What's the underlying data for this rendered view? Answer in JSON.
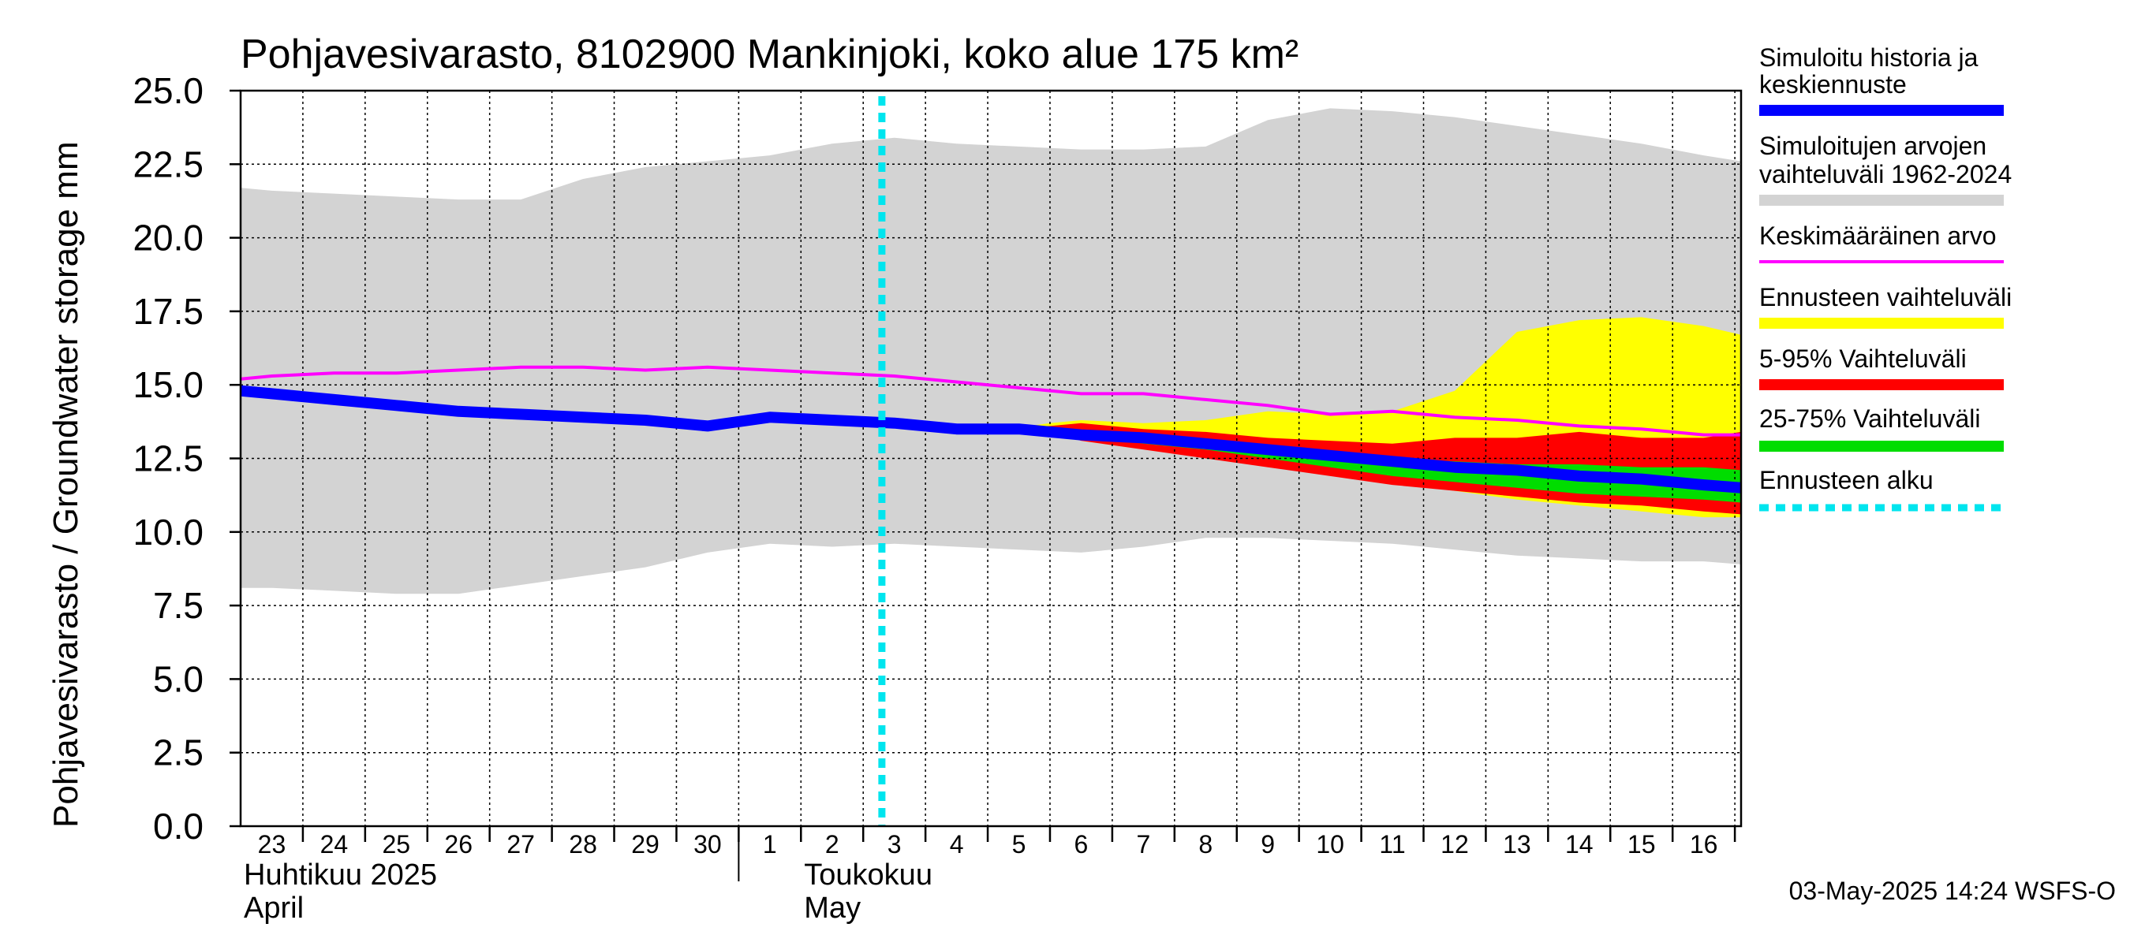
{
  "chart_data": {
    "type": "area",
    "title": "Pohjavesivarasto, 8102900 Mankinjoki, koko alue 175 km²",
    "ylabel": "Pohjavesivarasto / Groundwater storage   mm",
    "ylim": [
      0,
      25
    ],
    "yticks": [
      "0.0",
      "2.5",
      "5.0",
      "7.5",
      "10.0",
      "12.5",
      "15.0",
      "17.5",
      "20.0",
      "22.5",
      "25.0"
    ],
    "ytick_values": [
      0,
      2.5,
      5,
      7.5,
      10,
      12.5,
      15,
      17.5,
      20,
      22.5,
      25
    ],
    "x_day_range": [
      -0.5,
      23.6
    ],
    "day_labels": [
      "23",
      "24",
      "25",
      "26",
      "27",
      "28",
      "29",
      "30",
      "1",
      "2",
      "3",
      "4",
      "5",
      "6",
      "7",
      "8",
      "9",
      "10",
      "11",
      "12",
      "13",
      "14",
      "15",
      "16"
    ],
    "month_labels": [
      {
        "line1": "Huhtikuu  2025",
        "line2": "April",
        "day": 0
      },
      {
        "line1": "Toukokuu",
        "line2": "May",
        "day": 9
      }
    ],
    "month_boundary_day": 7.5,
    "forecast_start_day": 9.8,
    "series": {
      "range_1962_2024": {
        "name": "Simuloitujen arvojen vaihteluväli 1962-2024",
        "color": "#d3d3d3",
        "x": [
          -0.5,
          0,
          1,
          2,
          3,
          4,
          5,
          6,
          7,
          8,
          9,
          10,
          11,
          12,
          13,
          14,
          15,
          16,
          17,
          18,
          19,
          20,
          21,
          22,
          23,
          23.6
        ],
        "upper": [
          21.7,
          21.6,
          21.5,
          21.4,
          21.3,
          21.3,
          22.0,
          22.4,
          22.6,
          22.8,
          23.2,
          23.4,
          23.2,
          23.1,
          23.0,
          23.0,
          23.1,
          24.0,
          24.4,
          24.3,
          24.1,
          23.8,
          23.5,
          23.2,
          22.8,
          22.6
        ],
        "lower": [
          8.1,
          8.1,
          8.0,
          7.9,
          7.9,
          8.2,
          8.5,
          8.8,
          9.3,
          9.6,
          9.5,
          9.6,
          9.5,
          9.4,
          9.3,
          9.5,
          9.8,
          9.8,
          9.7,
          9.6,
          9.4,
          9.2,
          9.1,
          9.0,
          9.0,
          8.9
        ]
      },
      "forecast_range": {
        "name": "Ennusteen vaihteluväli",
        "color": "#ffff00",
        "x": [
          11.8,
          12.5,
          13,
          14,
          15,
          16,
          17,
          18,
          19,
          20,
          21,
          22,
          23,
          23.6
        ],
        "upper": [
          13.5,
          13.7,
          13.8,
          13.7,
          13.8,
          14.1,
          14.0,
          14.1,
          14.8,
          16.8,
          17.2,
          17.3,
          17.0,
          16.7
        ],
        "lower": [
          13.5,
          13.5,
          13.2,
          12.9,
          12.6,
          12.3,
          12.0,
          11.7,
          11.4,
          11.1,
          10.9,
          10.7,
          10.5,
          10.5
        ]
      },
      "p5_95": {
        "name": "5-95% Vaihteluväli",
        "color": "#ff0000",
        "x": [
          11.8,
          12.5,
          13,
          14,
          15,
          16,
          17,
          18,
          19,
          20,
          21,
          22,
          23,
          23.6
        ],
        "upper": [
          13.5,
          13.6,
          13.7,
          13.5,
          13.4,
          13.2,
          13.1,
          13.0,
          13.2,
          13.2,
          13.4,
          13.2,
          13.2,
          13.4
        ],
        "lower": [
          13.5,
          13.4,
          13.1,
          12.8,
          12.5,
          12.2,
          11.9,
          11.6,
          11.4,
          11.2,
          11.0,
          10.9,
          10.7,
          10.6
        ]
      },
      "p25_75": {
        "name": "25-75% Vaihteluväli",
        "color": "#00dd00",
        "x": [
          11.8,
          12.5,
          13,
          14,
          15,
          16,
          17,
          18,
          19,
          20,
          21,
          22,
          23,
          23.6
        ],
        "upper": [
          13.5,
          13.5,
          13.4,
          13.2,
          13.0,
          12.8,
          12.6,
          12.5,
          12.4,
          12.3,
          12.3,
          12.2,
          12.2,
          12.1
        ],
        "lower": [
          13.5,
          13.5,
          13.3,
          13.0,
          12.8,
          12.5,
          12.2,
          11.9,
          11.7,
          11.5,
          11.3,
          11.2,
          11.1,
          11.0
        ]
      },
      "mean": {
        "name": "Keskimääräinen arvo",
        "color": "#ff00ff",
        "x": [
          -0.5,
          0,
          1,
          2,
          3,
          4,
          5,
          6,
          7,
          8,
          9,
          10,
          11,
          12,
          13,
          14,
          15,
          16,
          17,
          18,
          19,
          20,
          21,
          22,
          23,
          23.6
        ],
        "y": [
          15.2,
          15.3,
          15.4,
          15.4,
          15.5,
          15.6,
          15.6,
          15.5,
          15.6,
          15.5,
          15.4,
          15.3,
          15.1,
          14.9,
          14.7,
          14.7,
          14.5,
          14.3,
          14.0,
          14.1,
          13.9,
          13.8,
          13.6,
          13.5,
          13.3,
          13.3
        ]
      },
      "history_forecast": {
        "name": "Simuloitu historia ja keskiennuste",
        "color": "#0000ff",
        "x": [
          -0.5,
          0,
          1,
          2,
          3,
          4,
          5,
          6,
          7,
          8,
          9,
          10,
          11,
          12,
          13,
          14,
          15,
          16,
          17,
          18,
          19,
          20,
          21,
          22,
          23,
          23.6
        ],
        "y": [
          14.8,
          14.7,
          14.5,
          14.3,
          14.1,
          14.0,
          13.9,
          13.8,
          13.6,
          13.9,
          13.8,
          13.7,
          13.5,
          13.5,
          13.3,
          13.2,
          13.0,
          12.8,
          12.6,
          12.4,
          12.2,
          12.1,
          11.9,
          11.8,
          11.6,
          11.5
        ]
      }
    },
    "legend": [
      {
        "key": "history_forecast",
        "line1": "Simuloitu historia ja",
        "line2": "keskiennuste",
        "color": "#0000ff",
        "style": "thick"
      },
      {
        "key": "range_1962_2024",
        "line1": "Simuloitujen arvojen",
        "line2": "vaihteluväli 1962-2024",
        "color": "#d3d3d3",
        "style": "thick"
      },
      {
        "key": "mean",
        "line1": "Keskimääräinen arvo",
        "line2": "",
        "color": "#ff00ff",
        "style": "thin"
      },
      {
        "key": "forecast_range",
        "line1": "Ennusteen vaihteluväli",
        "line2": "",
        "color": "#ffff00",
        "style": "thick"
      },
      {
        "key": "p5_95",
        "line1": "5-95% Vaihteluväli",
        "line2": "",
        "color": "#ff0000",
        "style": "thick"
      },
      {
        "key": "p25_75",
        "line1": "25-75% Vaihteluväli",
        "line2": "",
        "color": "#00dd00",
        "style": "thick"
      },
      {
        "key": "forecast_start",
        "line1": "Ennusteen alku",
        "line2": "",
        "color": "#00e5ee",
        "style": "dashed"
      }
    ],
    "legend_position": "right",
    "footer": "03-May-2025 14:24 WSFS-O"
  }
}
